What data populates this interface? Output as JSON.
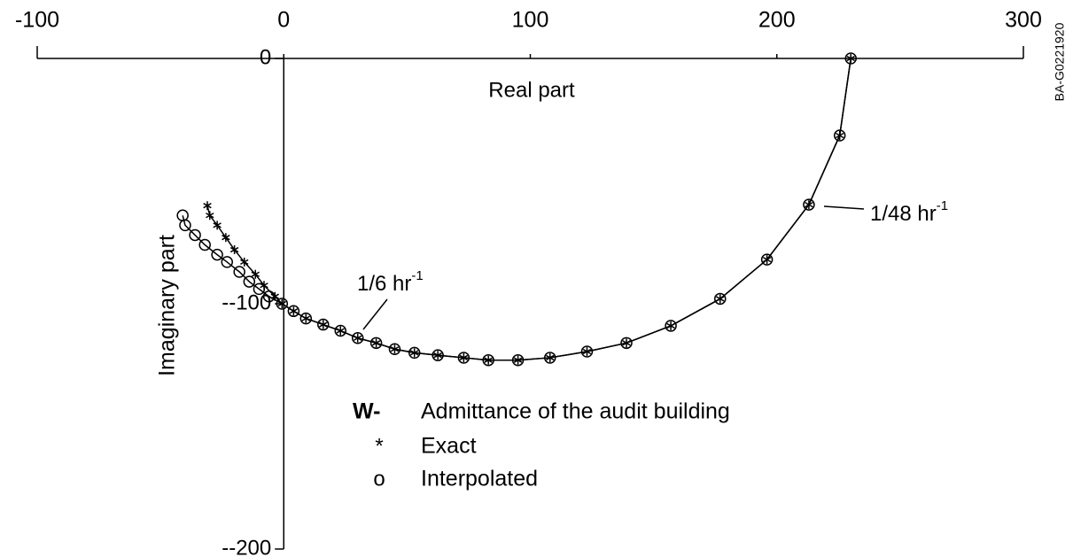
{
  "chart_data": {
    "type": "scatter",
    "xlabel": "Real part",
    "ylabel": "Imaginary part",
    "xlim": [
      -100,
      300
    ],
    "xticks": [
      -100,
      0,
      100,
      200,
      300
    ],
    "ylim": [
      -200,
      0
    ],
    "yticks": [
      0,
      {
        "value": -100,
        "label": "--100"
      },
      {
        "value": -200,
        "label": "--200"
      }
    ],
    "legend_title": {
      "symbol": "W-",
      "text": "Admittance of the audit building"
    },
    "series": [
      {
        "name": "Exact",
        "symbol": "*",
        "color": "#000000",
        "x": [
          230,
          225.5,
          213,
          196,
          177,
          157,
          139,
          123,
          108,
          95,
          83,
          73,
          62.5,
          53,
          45,
          37.5,
          30,
          23,
          16,
          9,
          4,
          -0.7,
          -3.6,
          -8,
          -11.5,
          -16,
          -20,
          -23.5,
          -27,
          -30,
          -31
        ],
        "y": [
          0,
          -31.4,
          -59.6,
          -82,
          -98,
          -109,
          -116,
          -119.5,
          -122,
          -123,
          -123,
          -122,
          -121,
          -120,
          -118.5,
          -116,
          -114,
          -111,
          -108.5,
          -106,
          -103,
          -100,
          -97,
          -92.5,
          -88,
          -83,
          -78,
          -73,
          -68,
          -64,
          -60
        ]
      },
      {
        "name": "Interpolated",
        "symbol": "o",
        "color": "#000000",
        "x": [
          230,
          225.5,
          213,
          196,
          177,
          157,
          139,
          123,
          108,
          95,
          83,
          73,
          62.5,
          53,
          45,
          37.5,
          30,
          23,
          16,
          9,
          4,
          -0.7,
          -6,
          -10,
          -14,
          -18,
          -23,
          -27,
          -32,
          -36,
          -40,
          -41
        ],
        "y": [
          0,
          -31.4,
          -59.6,
          -82,
          -98,
          -109,
          -116,
          -119.5,
          -122,
          -123,
          -123,
          -122,
          -121,
          -120,
          -118.5,
          -116,
          -114,
          -111,
          -108.5,
          -106,
          -103,
          -100,
          -97,
          -94,
          -91,
          -87,
          -83,
          -80,
          -76,
          -72,
          -68,
          -64
        ]
      }
    ],
    "annotations": [
      {
        "text": "1/48 hr",
        "sup": "-1"
      },
      {
        "text": "1/6 hr",
        "sup": "-1"
      }
    ],
    "side_label": "BA-G0221920"
  }
}
